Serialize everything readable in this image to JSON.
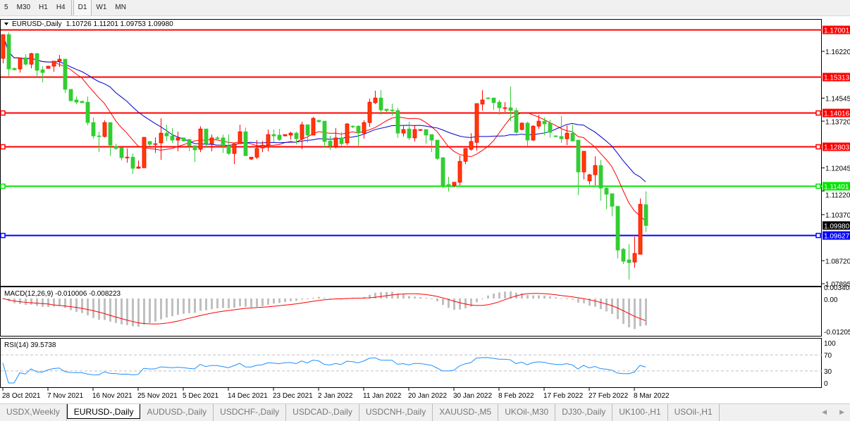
{
  "toolbar": {
    "timeframes": [
      "5",
      "M30",
      "H1",
      "H4",
      "D1",
      "W1",
      "MN"
    ],
    "active": "D1"
  },
  "chart": {
    "symbol_label": "EURUSD-,Daily",
    "ohlc_readout": "1.10726 1.11201 1.09753 1.09980",
    "colors": {
      "bull_body": "#ff3c00",
      "bull_border": "#ff0000",
      "bear_body": "#32cd32",
      "fast_ma": "#ff0000",
      "slow_ma": "#0000cc"
    },
    "price_axis": {
      "max": 1.17001,
      "min": 1.07895,
      "ticks": [
        "1.16220",
        "1.14545",
        "1.13720",
        "1.12045",
        "1.11220",
        "1.10370",
        "1.08720",
        "1.07895"
      ]
    },
    "current_price": "1.09980",
    "hlines": [
      {
        "price": "1.17001",
        "color": "#ff0000",
        "marker": false
      },
      {
        "price": "1.15313",
        "color": "#ff0000",
        "marker": false
      },
      {
        "price": "1.14016",
        "color": "#ff0000",
        "marker": true
      },
      {
        "price": "1.12803",
        "color": "#ff0000",
        "marker": true
      },
      {
        "price": "1.11401",
        "color": "#00e600",
        "marker": true
      },
      {
        "price": "1.09627",
        "color": "#0000ff",
        "marker": true
      }
    ],
    "time_labels": [
      "28 Oct 2021",
      "7 Nov 2021",
      "16 Nov 2021",
      "25 Nov 2021",
      "5 Dec 2021",
      "14 Dec 2021",
      "23 Dec 2021",
      "2 Jan 2022",
      "11 Jan 2022",
      "20 Jan 2022",
      "30 Jan 2022",
      "8 Feb 2022",
      "17 Feb 2022",
      "27 Feb 2022",
      "8 Mar 2022"
    ],
    "candles": [
      [
        1.1597,
        1.1682,
        1.1579,
        1.1682
      ],
      [
        1.1682,
        1.169,
        1.1534,
        1.1559
      ],
      [
        1.1561,
        1.1564,
        1.1554,
        1.1556
      ],
      [
        1.1559,
        1.1599,
        1.1546,
        1.1599
      ],
      [
        1.1599,
        1.1612,
        1.1571,
        1.1576
      ],
      [
        1.1576,
        1.1617,
        1.1561,
        1.1614
      ],
      [
        1.1614,
        1.1617,
        1.1526,
        1.1554
      ],
      [
        1.1556,
        1.1569,
        1.1511,
        1.1546
      ],
      [
        1.1561,
        1.1569,
        1.1561,
        1.1569
      ],
      [
        1.1569,
        1.1587,
        1.1549,
        1.1587
      ],
      [
        1.1587,
        1.1609,
        1.1566,
        1.1594
      ],
      [
        1.1594,
        1.1594,
        1.1473,
        1.1486
      ],
      [
        1.1486,
        1.1486,
        1.1443,
        1.1445
      ],
      [
        1.1448,
        1.146,
        1.1433,
        1.144
      ],
      [
        1.1443,
        1.1445,
        1.1438,
        1.1438
      ],
      [
        1.144,
        1.146,
        1.1357,
        1.1367
      ],
      [
        1.1367,
        1.1385,
        1.1309,
        1.1319
      ],
      [
        1.1319,
        1.1334,
        1.1261,
        1.1317
      ],
      [
        1.1317,
        1.1375,
        1.1314,
        1.1367
      ],
      [
        1.1367,
        1.1367,
        1.1248,
        1.1286
      ],
      [
        1.1281,
        1.1291,
        1.1269,
        1.1274
      ],
      [
        1.1276,
        1.1276,
        1.1231,
        1.1241
      ],
      [
        1.1241,
        1.1274,
        1.1223,
        1.1243
      ],
      [
        1.1243,
        1.1256,
        1.1183,
        1.1203
      ],
      [
        1.1203,
        1.1231,
        1.1203,
        1.1208
      ],
      [
        1.1205,
        1.1314,
        1.1205,
        1.1314
      ],
      [
        1.1299,
        1.1301,
        1.1281,
        1.1289
      ],
      [
        1.1289,
        1.1314,
        1.1258,
        1.1291
      ],
      [
        1.1294,
        1.1382,
        1.1233,
        1.1329
      ],
      [
        1.1329,
        1.1359,
        1.1301,
        1.1319
      ],
      [
        1.1319,
        1.1347,
        1.1294,
        1.1304
      ],
      [
        1.1304,
        1.1334,
        1.1264,
        1.1312
      ],
      [
        1.1312,
        1.1314,
        1.1299,
        1.1301
      ],
      [
        1.1306,
        1.1309,
        1.1264,
        1.1284
      ],
      [
        1.1284,
        1.1284,
        1.1226,
        1.1269
      ],
      [
        1.1271,
        1.1354,
        1.1261,
        1.1344
      ],
      [
        1.1344,
        1.1344,
        1.1276,
        1.1291
      ],
      [
        1.1291,
        1.1324,
        1.1264,
        1.1312
      ],
      [
        1.1312,
        1.1319,
        1.1306,
        1.1309
      ],
      [
        1.1312,
        1.1324,
        1.1258,
        1.1284
      ],
      [
        1.1284,
        1.1324,
        1.1251,
        1.1256
      ],
      [
        1.1256,
        1.1291,
        1.1218,
        1.1291
      ],
      [
        1.1291,
        1.1359,
        1.1291,
        1.1334
      ],
      [
        1.1334,
        1.1349,
        1.1248,
        1.1248
      ],
      [
        1.1236,
        1.1243,
        1.1233,
        1.1243
      ],
      [
        1.1243,
        1.1304,
        1.1236,
        1.1274
      ],
      [
        1.1276,
        1.1301,
        1.1261,
        1.1286
      ],
      [
        1.1286,
        1.1342,
        1.1264,
        1.1324
      ],
      [
        1.1324,
        1.1342,
        1.1296,
        1.1319
      ],
      [
        1.1322,
        1.1344,
        1.1301,
        1.1306
      ],
      [
        1.1319,
        1.1324,
        1.1319,
        1.1324
      ],
      [
        1.1322,
        1.1334,
        1.1306,
        1.1329
      ],
      [
        1.1329,
        1.1334,
        1.1289,
        1.1309
      ],
      [
        1.1309,
        1.137,
        1.1271,
        1.1359
      ],
      [
        1.1359,
        1.1359,
        1.1296,
        1.1322
      ],
      [
        1.1322,
        1.1387,
        1.1322,
        1.1382
      ],
      [
        1.1375,
        1.1375,
        1.1367,
        1.137
      ],
      [
        1.1372,
        1.1372,
        1.1276,
        1.1299
      ],
      [
        1.1301,
        1.1319,
        1.1269,
        1.1284
      ],
      [
        1.1281,
        1.1347,
        1.1274,
        1.1312
      ],
      [
        1.1312,
        1.1332,
        1.1284,
        1.1291
      ],
      [
        1.1294,
        1.1365,
        1.1286,
        1.1362
      ],
      [
        1.1354,
        1.1357,
        1.1347,
        1.1352
      ],
      [
        1.1354,
        1.1357,
        1.1284,
        1.1329
      ],
      [
        1.1329,
        1.1375,
        1.1309,
        1.1367
      ],
      [
        1.1367,
        1.1453,
        1.1352,
        1.144
      ],
      [
        1.1438,
        1.1481,
        1.1433,
        1.1455
      ],
      [
        1.1455,
        1.1483,
        1.1395,
        1.1412
      ],
      [
        1.1415,
        1.1415,
        1.1405,
        1.141
      ],
      [
        1.1412,
        1.1435,
        1.1392,
        1.141
      ],
      [
        1.141,
        1.142,
        1.1312,
        1.1329
      ],
      [
        1.1329,
        1.1357,
        1.1317,
        1.1342
      ],
      [
        1.1344,
        1.137,
        1.1304,
        1.1312
      ],
      [
        1.1312,
        1.1359,
        1.1299,
        1.1342
      ],
      [
        1.1339,
        1.1342,
        1.1337,
        1.1342
      ],
      [
        1.1342,
        1.1342,
        1.1291,
        1.1322
      ],
      [
        1.1324,
        1.1324,
        1.1261,
        1.1304
      ],
      [
        1.1304,
        1.1304,
        1.1233,
        1.1238
      ],
      [
        1.1241,
        1.1243,
        1.1132,
        1.1142
      ],
      [
        1.1145,
        1.1173,
        1.112,
        1.1142
      ],
      [
        1.1142,
        1.1153,
        1.1135,
        1.1153
      ],
      [
        1.1153,
        1.1248,
        1.1142,
        1.1228
      ],
      [
        1.1228,
        1.1274,
        1.1218,
        1.1274
      ],
      [
        1.1271,
        1.1329,
        1.1266,
        1.1299
      ],
      [
        1.1296,
        1.1435,
        1.1266,
        1.1435
      ],
      [
        1.1433,
        1.1483,
        1.141,
        1.1448
      ],
      [
        1.1455,
        1.1458,
        1.145,
        1.1453
      ],
      [
        1.1455,
        1.1455,
        1.1412,
        1.1438
      ],
      [
        1.144,
        1.1448,
        1.1395,
        1.142
      ],
      [
        1.1418,
        1.144,
        1.1405,
        1.142
      ],
      [
        1.142,
        1.1496,
        1.1372,
        1.141
      ],
      [
        1.141,
        1.142,
        1.1327,
        1.1332
      ],
      [
        1.1342,
        1.1367,
        1.1339,
        1.1365
      ],
      [
        1.1365,
        1.137,
        1.1281,
        1.1304
      ],
      [
        1.1304,
        1.1357,
        1.1301,
        1.1354
      ],
      [
        1.1354,
        1.1395,
        1.1344,
        1.1372
      ],
      [
        1.1372,
        1.1385,
        1.1322,
        1.1362
      ],
      [
        1.1365,
        1.1377,
        1.1312,
        1.1332
      ],
      [
        1.1319,
        1.1322,
        1.1314,
        1.1317
      ],
      [
        1.1317,
        1.139,
        1.1294,
        1.1309
      ],
      [
        1.1309,
        1.1357,
        1.1286,
        1.1329
      ],
      [
        1.1329,
        1.1359,
        1.1299,
        1.1301
      ],
      [
        1.1304,
        1.1304,
        1.1107,
        1.119
      ],
      [
        1.119,
        1.1264,
        1.1163,
        1.1264
      ],
      [
        1.1158,
        1.1183,
        1.1145,
        1.118
      ],
      [
        1.118,
        1.1246,
        1.1142,
        1.1213
      ],
      [
        1.1213,
        1.1233,
        1.1087,
        1.1132
      ],
      [
        1.1132,
        1.114,
        1.1057,
        1.111
      ],
      [
        1.1112,
        1.1112,
        1.1031,
        1.1067
      ],
      [
        1.1067,
        1.1067,
        1.088,
        1.091
      ],
      [
        1.0913,
        1.0918,
        1.086,
        1.087
      ],
      [
        1.0875,
        1.0931,
        1.0804,
        1.0865
      ],
      [
        1.0867,
        1.0958,
        1.0847,
        1.0898
      ],
      [
        1.0895,
        1.1095,
        1.0895,
        1.1074
      ],
      [
        1.10726,
        1.11201,
        1.09753,
        1.0998
      ]
    ]
  },
  "macd": {
    "label": "MACD(12,26,9) -0.010006 -0.008223",
    "axis": [
      "0.003408",
      "0.00",
      "-0.01205"
    ],
    "hist_color": "#c0c0c0",
    "signal_color": "#ff0000"
  },
  "rsi": {
    "label": "RSI(14) 39.5738",
    "axis": [
      "100",
      "70",
      "30",
      "0"
    ],
    "line_color": "#1e90ff"
  },
  "tabs": {
    "items": [
      "USDX,Weekly",
      "EURUSD-,Daily",
      "AUDUSD-,Daily",
      "USDCHF-,Daily",
      "USDCAD-,Daily",
      "USDCNH-,Daily",
      "XAUUSD-,M5",
      "UKOil-,M30",
      "DJ30-,Daily",
      "UK100-,H1",
      "USOil-,H1"
    ],
    "active": 1,
    "scroll_left": "◀",
    "scroll_right": "▶"
  }
}
